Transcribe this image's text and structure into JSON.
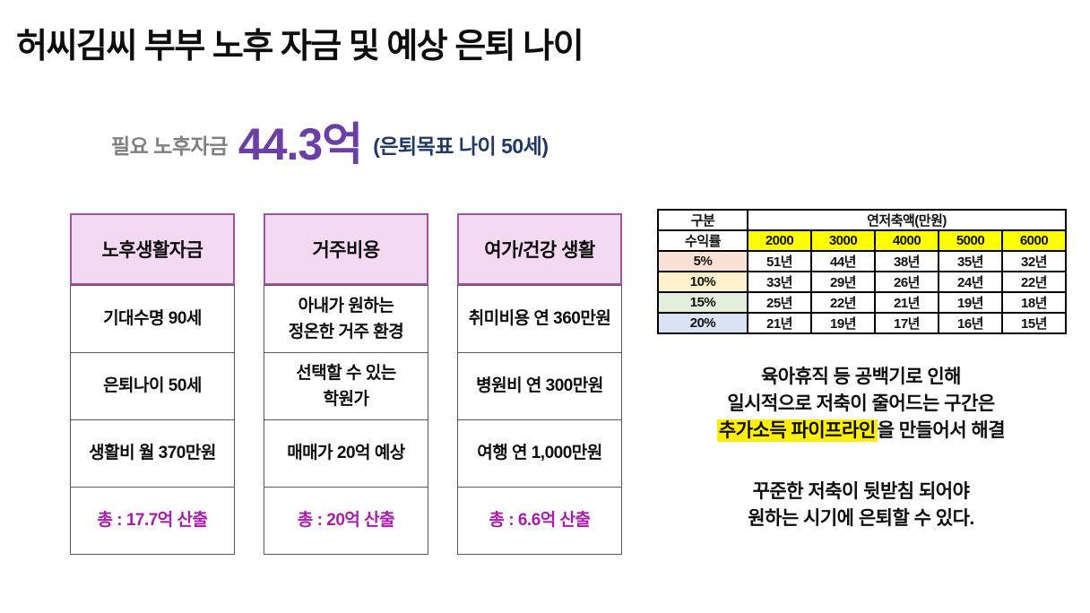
{
  "title": "허씨김씨 부부 노후 자금 및 예상 은퇴 나이",
  "summary": {
    "label": "필요 노후자금",
    "amount": "44.3억",
    "note": "(은퇴목표 나이 50세)"
  },
  "boxes": [
    {
      "header": "노후생활자금",
      "cells": [
        "기대수명 90세",
        "은퇴나이 50세",
        "생활비 월 370만원"
      ],
      "total": "총 : 17.7억 산출"
    },
    {
      "header": "거주비용",
      "cells": [
        "아내가 원하는\n정온한 거주 환경",
        "선택할 수 있는\n학원가",
        "매매가 20억 예상"
      ],
      "total": "총 : 20억 산출"
    },
    {
      "header": "여가/건강 생활",
      "cells": [
        "취미비용 연 360만원",
        "병원비 연 300만원",
        "여행 연 1,000만원"
      ],
      "total": "총 : 6.6억 산출"
    }
  ],
  "savings_table": {
    "corner_label": "구분",
    "group_header": "연저축액(만원)",
    "row_header_label": "수익률",
    "amount_columns": [
      "2000",
      "3000",
      "4000",
      "5000",
      "6000"
    ],
    "rows": [
      {
        "rate": "5%",
        "color": "#fbe0d5",
        "values": [
          "51년",
          "44년",
          "38년",
          "35년",
          "32년"
        ]
      },
      {
        "rate": "10%",
        "color": "#fdf2cc",
        "values": [
          "33년",
          "29년",
          "26년",
          "24년",
          "22년"
        ]
      },
      {
        "rate": "15%",
        "color": "#e2efda",
        "values": [
          "25년",
          "22년",
          "21년",
          "19년",
          "18년"
        ]
      },
      {
        "rate": "20%",
        "color": "#dae3f3",
        "values": [
          "21년",
          "19년",
          "17년",
          "16년",
          "15년"
        ]
      }
    ]
  },
  "notes": {
    "para1_line1": "육아휴직 등 공백기로 인해",
    "para1_line2": "일시적으로 저축이 줄어드는 구간은",
    "para1_highlight": "추가소득 파이프라인",
    "para1_rest": "을 만들어서 해결",
    "para2_line1": "꾸준한 저축이 뒷받침 되어야",
    "para2_line2": "원하는 시기에 은퇴할 수 있다."
  },
  "colors": {
    "amount_purple": "#6b3fa5",
    "note_navy": "#1f3864",
    "label_gray": "#7f7f7f",
    "box_header_bg": "#f3d9f1",
    "box_header_border": "#a153a3",
    "total_magenta": "#a81cac",
    "table_highlight_yellow": "#ffff00",
    "text_highlight_yellow": "#ffef00"
  }
}
